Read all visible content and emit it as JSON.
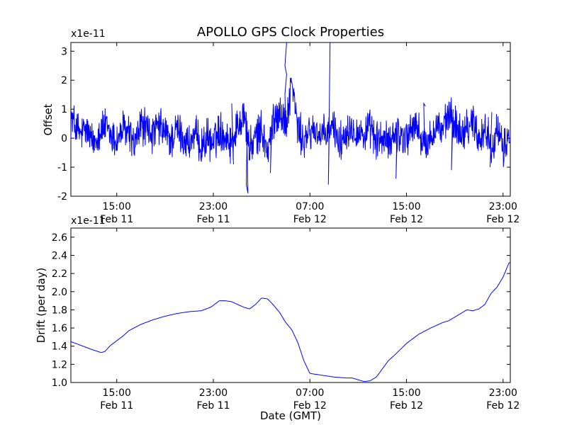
{
  "figure": {
    "title": "APOLLO GPS Clock Properties",
    "xlabel": "Date (GMT)"
  },
  "x_ticks": {
    "times": [
      "15:00",
      "23:00",
      "07:00",
      "15:00",
      "23:00"
    ],
    "dates": [
      "Feb 11",
      "Feb 11",
      "Feb 12",
      "Feb 12",
      "Feb 12"
    ]
  },
  "chart_data": [
    {
      "type": "line",
      "panel": "top",
      "ylabel": "Offset",
      "scale_label": "x1e-11",
      "xlim_hours": [
        11.2,
        47.6
      ],
      "ylim": [
        -2,
        3.3
      ],
      "yticks": [
        -2,
        -1,
        0,
        1,
        2,
        3
      ],
      "xticks_hours": [
        15,
        23,
        31,
        39,
        47
      ],
      "line_color": "#0000ff",
      "series": [
        {
          "name": "offset",
          "x_hours": [
            11.2,
            11.6,
            12.0,
            12.5,
            13.0,
            13.5,
            14.0,
            14.5,
            15.0,
            15.5,
            16.0,
            16.5,
            17.0,
            17.5,
            18.0,
            18.5,
            19.0,
            19.5,
            20.0,
            20.5,
            21.0,
            21.5,
            22.0,
            22.5,
            23.0,
            23.5,
            24.0,
            24.5,
            25.0,
            25.5,
            26.0,
            26.5,
            27.0,
            27.5,
            28.0,
            28.5,
            29.0,
            29.5,
            30.0,
            30.5,
            31.0,
            31.5,
            32.0,
            32.5,
            33.0,
            33.5,
            34.0,
            34.5,
            35.0,
            35.5,
            36.0,
            36.5,
            37.0,
            37.5,
            38.0,
            38.5,
            39.0,
            39.5,
            40.0,
            40.5,
            41.0,
            41.5,
            42.0,
            42.5,
            43.0,
            43.5,
            44.0,
            44.5,
            45.0,
            45.5,
            46.0,
            46.5,
            47.0,
            47.5
          ],
          "values": [
            0.7,
            0.4,
            0.1,
            0.3,
            -0.2,
            0.2,
            0.4,
            0.1,
            -0.1,
            0.3,
            0.2,
            -0.3,
            0.5,
            0.3,
            0.1,
            0.4,
            0.2,
            -0.1,
            0.3,
            0.0,
            -0.2,
            0.1,
            -0.3,
            0.0,
            -0.2,
            0.3,
            0.1,
            -0.2,
            0.4,
            0.9,
            -0.4,
            0.0,
            0.3,
            -0.5,
            0.6,
            1.0,
            0.4,
            2.0,
            0.3,
            -0.1,
            0.2,
            0.3,
            0.0,
            0.2,
            0.4,
            -0.2,
            0.3,
            0.4,
            0.2,
            0.1,
            0.3,
            -0.1,
            0.0,
            -0.2,
            0.2,
            0.1,
            0.0,
            0.4,
            0.3,
            -0.3,
            0.0,
            0.5,
            0.2,
            0.8,
            0.5,
            0.2,
            0.4,
            0.6,
            0.0,
            0.3,
            -0.2,
            0.2,
            -0.4,
            0.1
          ]
        },
        {
          "name": "offset-spikes",
          "events": [
            {
              "x_hours": 24.6,
              "values": [
                1.2,
                -0.9
              ]
            },
            {
              "x_hours": 25.8,
              "values": [
                -1.6,
                -1.9,
                0.9
              ]
            },
            {
              "x_hours": 27.8,
              "values": [
                -1.2,
                0.8
              ]
            },
            {
              "x_hours": 29.0,
              "values": [
                1.5,
                2.2,
                2.5,
                3.3
              ]
            },
            {
              "x_hours": 32.6,
              "values": [
                -1.6,
                3.4
              ]
            },
            {
              "x_hours": 38.2,
              "values": [
                -1.4,
                0.7
              ]
            },
            {
              "x_hours": 40.5,
              "values": [
                1.2,
                1.1
              ]
            },
            {
              "x_hours": 42.8,
              "values": [
                -1.1,
                1.0
              ]
            },
            {
              "x_hours": 46.0,
              "values": [
                -1.0,
                0.9
              ]
            }
          ]
        }
      ]
    },
    {
      "type": "line",
      "panel": "bottom",
      "ylabel": "Drift (per day)",
      "scale_label": "x1e-11",
      "xlim_hours": [
        11.2,
        47.6
      ],
      "ylim": [
        1.0,
        2.7
      ],
      "yticks": [
        1.0,
        1.2,
        1.4,
        1.6,
        1.8,
        2.0,
        2.2,
        2.4,
        2.6
      ],
      "xticks_hours": [
        15,
        23,
        31,
        39,
        47
      ],
      "line_color": "#0000ff",
      "series": [
        {
          "name": "drift",
          "x_hours": [
            11.2,
            12.0,
            13.0,
            13.7,
            14.0,
            14.5,
            15.0,
            15.5,
            16.0,
            17.0,
            18.0,
            19.0,
            20.0,
            21.0,
            22.0,
            22.8,
            23.5,
            24.0,
            24.5,
            25.0,
            25.5,
            26.0,
            26.5,
            27.0,
            27.5,
            28.0,
            28.5,
            29.0,
            29.5,
            30.0,
            30.5,
            31.0,
            32.0,
            33.0,
            34.0,
            34.5,
            35.0,
            35.5,
            36.0,
            36.5,
            37.0,
            37.5,
            38.0,
            39.0,
            40.0,
            41.0,
            42.0,
            42.5,
            43.0,
            44.0,
            44.5,
            45.0,
            45.5,
            46.0,
            46.5,
            47.0,
            47.5
          ],
          "values": [
            1.45,
            1.41,
            1.36,
            1.33,
            1.34,
            1.41,
            1.46,
            1.51,
            1.57,
            1.64,
            1.69,
            1.73,
            1.76,
            1.78,
            1.79,
            1.83,
            1.9,
            1.9,
            1.89,
            1.86,
            1.83,
            1.81,
            1.86,
            1.93,
            1.92,
            1.85,
            1.77,
            1.66,
            1.58,
            1.44,
            1.24,
            1.1,
            1.08,
            1.06,
            1.05,
            1.05,
            1.03,
            1.01,
            1.02,
            1.06,
            1.15,
            1.24,
            1.3,
            1.43,
            1.53,
            1.6,
            1.66,
            1.68,
            1.72,
            1.8,
            1.79,
            1.81,
            1.86,
            1.98,
            2.05,
            2.16,
            2.32
          ]
        }
      ]
    }
  ]
}
